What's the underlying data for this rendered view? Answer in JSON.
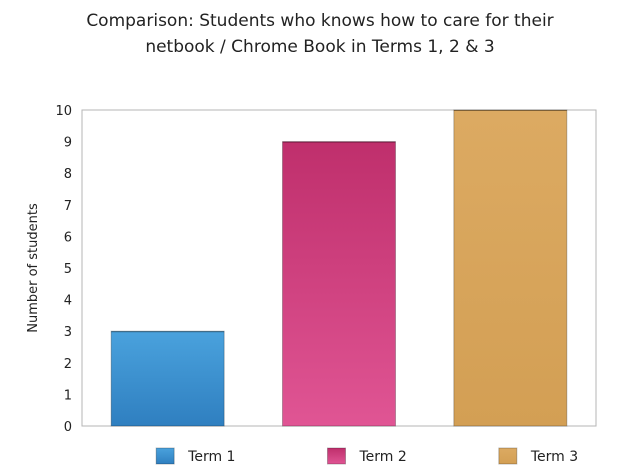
{
  "chart_data": {
    "type": "bar",
    "title": [
      "Comparison: Students who knows how to care for their",
      "netbook / Chrome Book in Terms 1, 2 & 3"
    ],
    "categories": [
      "Term 1",
      "Term 2",
      "Term 3"
    ],
    "values": [
      3,
      9,
      10
    ],
    "ylabel": "Number of students",
    "xlabel": "",
    "ylim": [
      0,
      10
    ],
    "yticks": [
      "0",
      "1",
      "2",
      "3",
      "4",
      "5",
      "6",
      "7",
      "8",
      "9",
      "10"
    ],
    "grid": false,
    "legend": "bottom",
    "colors": [
      "#3b8fcf",
      "#cc3d7c",
      "#d9a55a"
    ]
  }
}
